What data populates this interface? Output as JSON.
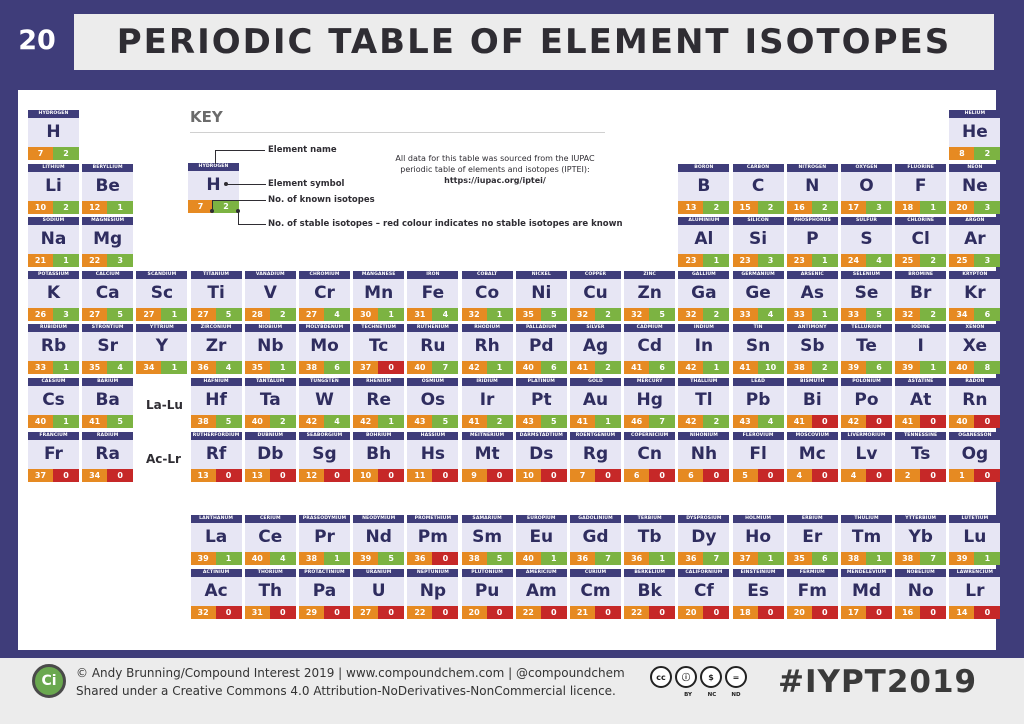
{
  "header": {
    "number": "20",
    "title": "PERIODIC TABLE OF ELEMENT ISOTOPES"
  },
  "placeholders": [
    "La-Lu",
    "Ac-Lr"
  ],
  "key": {
    "heading": "KEY",
    "element_name": "Element name",
    "element_symbol": "Element symbol",
    "known_isotopes": "No. of known isotopes",
    "stable_isotopes": "No. of stable isotopes – red colour indicates no stable isotopes are known",
    "note_line1": "All data for this table was sourced from the IUPAC",
    "note_line2": "periodic table of elements and isotopes (IPTEI):",
    "note_url": "https://iupac.org/iptei/",
    "example": {
      "name": "HYDROGEN",
      "sym": "H",
      "known": 7,
      "stable": 2
    }
  },
  "colors": {
    "stable": "#7cb342",
    "none_stable": "#c62828",
    "known": "#e68a22",
    "header": "#3f3d7a"
  },
  "elements": [
    {
      "name": "HYDROGEN",
      "sym": "H",
      "known": 7,
      "stable": 2,
      "row": 1,
      "col": 1
    },
    {
      "name": "HELIUM",
      "sym": "He",
      "known": 8,
      "stable": 2,
      "row": 1,
      "col": 18
    },
    {
      "name": "LITHIUM",
      "sym": "Li",
      "known": 10,
      "stable": 2,
      "row": 2,
      "col": 1
    },
    {
      "name": "BERYLLIUM",
      "sym": "Be",
      "known": 12,
      "stable": 1,
      "row": 2,
      "col": 2
    },
    {
      "name": "BORON",
      "sym": "B",
      "known": 13,
      "stable": 2,
      "row": 2,
      "col": 13
    },
    {
      "name": "CARBON",
      "sym": "C",
      "known": 15,
      "stable": 2,
      "row": 2,
      "col": 14
    },
    {
      "name": "NITROGEN",
      "sym": "N",
      "known": 16,
      "stable": 2,
      "row": 2,
      "col": 15
    },
    {
      "name": "OXYGEN",
      "sym": "O",
      "known": 17,
      "stable": 3,
      "row": 2,
      "col": 16
    },
    {
      "name": "FLUORINE",
      "sym": "F",
      "known": 18,
      "stable": 1,
      "row": 2,
      "col": 17
    },
    {
      "name": "NEON",
      "sym": "Ne",
      "known": 20,
      "stable": 3,
      "row": 2,
      "col": 18
    },
    {
      "name": "SODIUM",
      "sym": "Na",
      "known": 21,
      "stable": 1,
      "row": 3,
      "col": 1
    },
    {
      "name": "MAGNESIUM",
      "sym": "Mg",
      "known": 22,
      "stable": 3,
      "row": 3,
      "col": 2
    },
    {
      "name": "ALUMINIUM",
      "sym": "Al",
      "known": 23,
      "stable": 1,
      "row": 3,
      "col": 13
    },
    {
      "name": "SILICON",
      "sym": "Si",
      "known": 23,
      "stable": 3,
      "row": 3,
      "col": 14
    },
    {
      "name": "PHOSPHORUS",
      "sym": "P",
      "known": 23,
      "stable": 1,
      "row": 3,
      "col": 15
    },
    {
      "name": "SULFUR",
      "sym": "S",
      "known": 24,
      "stable": 4,
      "row": 3,
      "col": 16
    },
    {
      "name": "CHLORINE",
      "sym": "Cl",
      "known": 25,
      "stable": 2,
      "row": 3,
      "col": 17
    },
    {
      "name": "ARGON",
      "sym": "Ar",
      "known": 25,
      "stable": 3,
      "row": 3,
      "col": 18
    },
    {
      "name": "POTASSIUM",
      "sym": "K",
      "known": 26,
      "stable": 3,
      "row": 4,
      "col": 1
    },
    {
      "name": "CALCIUM",
      "sym": "Ca",
      "known": 27,
      "stable": 5,
      "row": 4,
      "col": 2
    },
    {
      "name": "SCANDIUM",
      "sym": "Sc",
      "known": 27,
      "stable": 1,
      "row": 4,
      "col": 3
    },
    {
      "name": "TITANIUM",
      "sym": "Ti",
      "known": 27,
      "stable": 5,
      "row": 4,
      "col": 4
    },
    {
      "name": "VANADIUM",
      "sym": "V",
      "known": 28,
      "stable": 2,
      "row": 4,
      "col": 5
    },
    {
      "name": "CHROMIUM",
      "sym": "Cr",
      "known": 27,
      "stable": 4,
      "row": 4,
      "col": 6
    },
    {
      "name": "MANGANESE",
      "sym": "Mn",
      "known": 30,
      "stable": 1,
      "row": 4,
      "col": 7
    },
    {
      "name": "IRON",
      "sym": "Fe",
      "known": 31,
      "stable": 4,
      "row": 4,
      "col": 8
    },
    {
      "name": "COBALT",
      "sym": "Co",
      "known": 32,
      "stable": 1,
      "row": 4,
      "col": 9
    },
    {
      "name": "NICKEL",
      "sym": "Ni",
      "known": 35,
      "stable": 5,
      "row": 4,
      "col": 10
    },
    {
      "name": "COPPER",
      "sym": "Cu",
      "known": 32,
      "stable": 2,
      "row": 4,
      "col": 11
    },
    {
      "name": "ZINC",
      "sym": "Zn",
      "known": 32,
      "stable": 5,
      "row": 4,
      "col": 12
    },
    {
      "name": "GALLIUM",
      "sym": "Ga",
      "known": 32,
      "stable": 2,
      "row": 4,
      "col": 13
    },
    {
      "name": "GERMANIUM",
      "sym": "Ge",
      "known": 33,
      "stable": 4,
      "row": 4,
      "col": 14
    },
    {
      "name": "ARSENIC",
      "sym": "As",
      "known": 33,
      "stable": 1,
      "row": 4,
      "col": 15
    },
    {
      "name": "SELENIUM",
      "sym": "Se",
      "known": 33,
      "stable": 5,
      "row": 4,
      "col": 16
    },
    {
      "name": "BROMINE",
      "sym": "Br",
      "known": 32,
      "stable": 2,
      "row": 4,
      "col": 17
    },
    {
      "name": "KRYPTON",
      "sym": "Kr",
      "known": 34,
      "stable": 6,
      "row": 4,
      "col": 18
    },
    {
      "name": "RUBIDIUM",
      "sym": "Rb",
      "known": 33,
      "stable": 1,
      "row": 5,
      "col": 1
    },
    {
      "name": "STRONTIUM",
      "sym": "Sr",
      "known": 35,
      "stable": 4,
      "row": 5,
      "col": 2
    },
    {
      "name": "YTTRIUM",
      "sym": "Y",
      "known": 34,
      "stable": 1,
      "row": 5,
      "col": 3
    },
    {
      "name": "ZIRCONIUM",
      "sym": "Zr",
      "known": 36,
      "stable": 4,
      "row": 5,
      "col": 4
    },
    {
      "name": "NIOBIUM",
      "sym": "Nb",
      "known": 35,
      "stable": 1,
      "row": 5,
      "col": 5
    },
    {
      "name": "MOLYBDENUM",
      "sym": "Mo",
      "known": 38,
      "stable": 6,
      "row": 5,
      "col": 6
    },
    {
      "name": "TECHNETIUM",
      "sym": "Tc",
      "known": 37,
      "stable": 0,
      "row": 5,
      "col": 7
    },
    {
      "name": "RUTHENIUM",
      "sym": "Ru",
      "known": 40,
      "stable": 7,
      "row": 5,
      "col": 8
    },
    {
      "name": "RHODIUM",
      "sym": "Rh",
      "known": 42,
      "stable": 1,
      "row": 5,
      "col": 9
    },
    {
      "name": "PALLADIUM",
      "sym": "Pd",
      "known": 40,
      "stable": 6,
      "row": 5,
      "col": 10
    },
    {
      "name": "SILVER",
      "sym": "Ag",
      "known": 41,
      "stable": 2,
      "row": 5,
      "col": 11
    },
    {
      "name": "CADMIUM",
      "sym": "Cd",
      "known": 41,
      "stable": 6,
      "row": 5,
      "col": 12
    },
    {
      "name": "INDIUM",
      "sym": "In",
      "known": 42,
      "stable": 1,
      "row": 5,
      "col": 13
    },
    {
      "name": "TIN",
      "sym": "Sn",
      "known": 41,
      "stable": 10,
      "row": 5,
      "col": 14
    },
    {
      "name": "ANTIMONY",
      "sym": "Sb",
      "known": 38,
      "stable": 2,
      "row": 5,
      "col": 15
    },
    {
      "name": "TELLURIUM",
      "sym": "Te",
      "known": 39,
      "stable": 6,
      "row": 5,
      "col": 16
    },
    {
      "name": "IODINE",
      "sym": "I",
      "known": 39,
      "stable": 1,
      "row": 5,
      "col": 17
    },
    {
      "name": "XENON",
      "sym": "Xe",
      "known": 40,
      "stable": 8,
      "row": 5,
      "col": 18
    },
    {
      "name": "CAESIUM",
      "sym": "Cs",
      "known": 40,
      "stable": 1,
      "row": 6,
      "col": 1
    },
    {
      "name": "BARIUM",
      "sym": "Ba",
      "known": 41,
      "stable": 5,
      "row": 6,
      "col": 2
    },
    {
      "name": "HAFNIUM",
      "sym": "Hf",
      "known": 38,
      "stable": 5,
      "row": 6,
      "col": 4
    },
    {
      "name": "TANTALUM",
      "sym": "Ta",
      "known": 40,
      "stable": 2,
      "row": 6,
      "col": 5
    },
    {
      "name": "TUNGSTEN",
      "sym": "W",
      "known": 42,
      "stable": 4,
      "row": 6,
      "col": 6
    },
    {
      "name": "RHENIUM",
      "sym": "Re",
      "known": 42,
      "stable": 1,
      "row": 6,
      "col": 7
    },
    {
      "name": "OSMIUM",
      "sym": "Os",
      "known": 43,
      "stable": 5,
      "row": 6,
      "col": 8
    },
    {
      "name": "IRIDIUM",
      "sym": "Ir",
      "known": 41,
      "stable": 2,
      "row": 6,
      "col": 9
    },
    {
      "name": "PLATINUM",
      "sym": "Pt",
      "known": 43,
      "stable": 5,
      "row": 6,
      "col": 10
    },
    {
      "name": "GOLD",
      "sym": "Au",
      "known": 41,
      "stable": 1,
      "row": 6,
      "col": 11
    },
    {
      "name": "MERCURY",
      "sym": "Hg",
      "known": 46,
      "stable": 7,
      "row": 6,
      "col": 12
    },
    {
      "name": "THALLIUM",
      "sym": "Tl",
      "known": 42,
      "stable": 2,
      "row": 6,
      "col": 13
    },
    {
      "name": "LEAD",
      "sym": "Pb",
      "known": 43,
      "stable": 4,
      "row": 6,
      "col": 14
    },
    {
      "name": "BISMUTH",
      "sym": "Bi",
      "known": 41,
      "stable": 0,
      "row": 6,
      "col": 15
    },
    {
      "name": "POLONIUM",
      "sym": "Po",
      "known": 42,
      "stable": 0,
      "row": 6,
      "col": 16
    },
    {
      "name": "ASTATINE",
      "sym": "At",
      "known": 41,
      "stable": 0,
      "row": 6,
      "col": 17
    },
    {
      "name": "RADON",
      "sym": "Rn",
      "known": 40,
      "stable": 0,
      "row": 6,
      "col": 18
    },
    {
      "name": "FRANCIUM",
      "sym": "Fr",
      "known": 37,
      "stable": 0,
      "row": 7,
      "col": 1
    },
    {
      "name": "RADIUM",
      "sym": "Ra",
      "known": 34,
      "stable": 0,
      "row": 7,
      "col": 2
    },
    {
      "name": "RUTHERFORDIUM",
      "sym": "Rf",
      "known": 13,
      "stable": 0,
      "row": 7,
      "col": 4
    },
    {
      "name": "DUBNIUM",
      "sym": "Db",
      "known": 13,
      "stable": 0,
      "row": 7,
      "col": 5
    },
    {
      "name": "SEABORGIUM",
      "sym": "Sg",
      "known": 12,
      "stable": 0,
      "row": 7,
      "col": 6
    },
    {
      "name": "BOHRIUM",
      "sym": "Bh",
      "known": 10,
      "stable": 0,
      "row": 7,
      "col": 7
    },
    {
      "name": "HASSIUM",
      "sym": "Hs",
      "known": 11,
      "stable": 0,
      "row": 7,
      "col": 8
    },
    {
      "name": "MEITNERIUM",
      "sym": "Mt",
      "known": 9,
      "stable": 0,
      "row": 7,
      "col": 9
    },
    {
      "name": "DARMSTADTIUM",
      "sym": "Ds",
      "known": 10,
      "stable": 0,
      "row": 7,
      "col": 10
    },
    {
      "name": "ROENTGENIUM",
      "sym": "Rg",
      "known": 7,
      "stable": 0,
      "row": 7,
      "col": 11
    },
    {
      "name": "COPERNICIUM",
      "sym": "Cn",
      "known": 6,
      "stable": 0,
      "row": 7,
      "col": 12
    },
    {
      "name": "NIHONIUM",
      "sym": "Nh",
      "known": 6,
      "stable": 0,
      "row": 7,
      "col": 13
    },
    {
      "name": "FLEROVIUM",
      "sym": "Fl",
      "known": 5,
      "stable": 0,
      "row": 7,
      "col": 14
    },
    {
      "name": "MOSCOVIUM",
      "sym": "Mc",
      "known": 4,
      "stable": 0,
      "row": 7,
      "col": 15
    },
    {
      "name": "LIVERMORIUM",
      "sym": "Lv",
      "known": 4,
      "stable": 0,
      "row": 7,
      "col": 16
    },
    {
      "name": "TENNESSINE",
      "sym": "Ts",
      "known": 2,
      "stable": 0,
      "row": 7,
      "col": 17
    },
    {
      "name": "OGANESSON",
      "sym": "Og",
      "known": 1,
      "stable": 0,
      "row": 7,
      "col": 18
    },
    {
      "name": "LANTHANUM",
      "sym": "La",
      "known": 39,
      "stable": 1,
      "row": 9,
      "col": 4
    },
    {
      "name": "CERIUM",
      "sym": "Ce",
      "known": 40,
      "stable": 4,
      "row": 9,
      "col": 5
    },
    {
      "name": "PRASEODYMIUM",
      "sym": "Pr",
      "known": 38,
      "stable": 1,
      "row": 9,
      "col": 6
    },
    {
      "name": "NEODYMIUM",
      "sym": "Nd",
      "known": 39,
      "stable": 5,
      "row": 9,
      "col": 7
    },
    {
      "name": "PROMETHIUM",
      "sym": "Pm",
      "known": 36,
      "stable": 0,
      "row": 9,
      "col": 8
    },
    {
      "name": "SAMARIUM",
      "sym": "Sm",
      "known": 38,
      "stable": 5,
      "row": 9,
      "col": 9
    },
    {
      "name": "EUROPIUM",
      "sym": "Eu",
      "known": 40,
      "stable": 1,
      "row": 9,
      "col": 10
    },
    {
      "name": "GADOLINIUM",
      "sym": "Gd",
      "known": 36,
      "stable": 7,
      "row": 9,
      "col": 11
    },
    {
      "name": "TERBIUM",
      "sym": "Tb",
      "known": 36,
      "stable": 1,
      "row": 9,
      "col": 12
    },
    {
      "name": "DYSPROSIUM",
      "sym": "Dy",
      "known": 36,
      "stable": 7,
      "row": 9,
      "col": 13
    },
    {
      "name": "HOLMIUM",
      "sym": "Ho",
      "known": 37,
      "stable": 1,
      "row": 9,
      "col": 14
    },
    {
      "name": "ERBIUM",
      "sym": "Er",
      "known": 35,
      "stable": 6,
      "row": 9,
      "col": 15
    },
    {
      "name": "THULIUM",
      "sym": "Tm",
      "known": 38,
      "stable": 1,
      "row": 9,
      "col": 16
    },
    {
      "name": "YTTERBIUM",
      "sym": "Yb",
      "known": 38,
      "stable": 7,
      "row": 9,
      "col": 17
    },
    {
      "name": "LUTETIUM",
      "sym": "Lu",
      "known": 39,
      "stable": 1,
      "row": 9,
      "col": 18
    },
    {
      "name": "ACTINIUM",
      "sym": "Ac",
      "known": 32,
      "stable": 0,
      "row": 10,
      "col": 4
    },
    {
      "name": "THORIUM",
      "sym": "Th",
      "known": 31,
      "stable": 0,
      "row": 10,
      "col": 5
    },
    {
      "name": "PROTACTINIUM",
      "sym": "Pa",
      "known": 29,
      "stable": 0,
      "row": 10,
      "col": 6
    },
    {
      "name": "URANIUM",
      "sym": "U",
      "known": 27,
      "stable": 0,
      "row": 10,
      "col": 7
    },
    {
      "name": "NEPTUNIUM",
      "sym": "Np",
      "known": 22,
      "stable": 0,
      "row": 10,
      "col": 8
    },
    {
      "name": "PLUTONIUM",
      "sym": "Pu",
      "known": 20,
      "stable": 0,
      "row": 10,
      "col": 9
    },
    {
      "name": "AMERICIUM",
      "sym": "Am",
      "known": 22,
      "stable": 0,
      "row": 10,
      "col": 10
    },
    {
      "name": "CURIUM",
      "sym": "Cm",
      "known": 21,
      "stable": 0,
      "row": 10,
      "col": 11
    },
    {
      "name": "BERKELIUM",
      "sym": "Bk",
      "known": 22,
      "stable": 0,
      "row": 10,
      "col": 12
    },
    {
      "name": "CALIFORNIUM",
      "sym": "Cf",
      "known": 20,
      "stable": 0,
      "row": 10,
      "col": 13
    },
    {
      "name": "EINSTEINIUM",
      "sym": "Es",
      "known": 18,
      "stable": 0,
      "row": 10,
      "col": 14
    },
    {
      "name": "FERMIUM",
      "sym": "Fm",
      "known": 20,
      "stable": 0,
      "row": 10,
      "col": 15
    },
    {
      "name": "MENDELEVIUM",
      "sym": "Md",
      "known": 17,
      "stable": 0,
      "row": 10,
      "col": 16
    },
    {
      "name": "NOBELIUM",
      "sym": "No",
      "known": 16,
      "stable": 0,
      "row": 10,
      "col": 17
    },
    {
      "name": "LAWRENCIUM",
      "sym": "Lr",
      "known": 14,
      "stable": 0,
      "row": 10,
      "col": 18
    }
  ],
  "footer": {
    "logo_text": "Ci",
    "credit_line1": "© Andy Brunning/Compound Interest 2019 | www.compoundchem.com | @compoundchem",
    "credit_line2": "Shared under a Creative Commons 4.0 Attribution-NoDerivatives-NonCommercial licence.",
    "cc_icons": [
      "cc",
      "ⓘ",
      "$",
      "="
    ],
    "cc_caps": [
      "BY",
      "NC",
      "ND"
    ],
    "hashtag": "#IYPT2019"
  }
}
